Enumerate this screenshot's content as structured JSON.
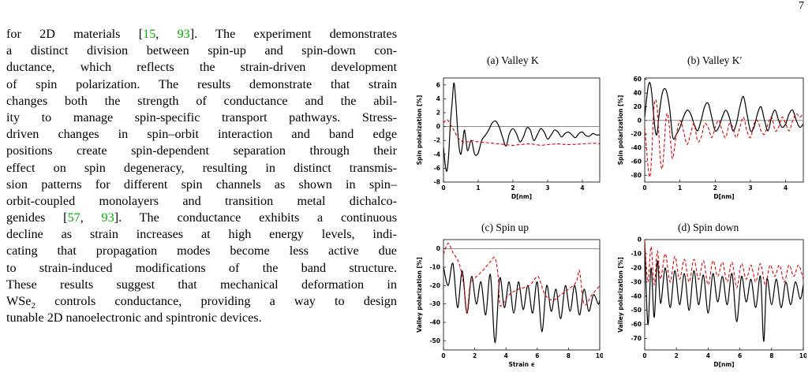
{
  "page_number": "7",
  "body_lines": [
    [
      {
        "t": "for 2D materials ["
      },
      {
        "c": "15"
      },
      {
        "t": ", "
      },
      {
        "c": "93"
      },
      {
        "t": "]. The experiment demonstrates"
      }
    ],
    [
      {
        "t": "a distinct division between spin-up and spin-down con-"
      }
    ],
    [
      {
        "t": "ductance, which reflects the strain-driven development"
      }
    ],
    [
      {
        "t": "of spin polarization. The results demonstrate that strain"
      }
    ],
    [
      {
        "t": "changes both the strength of conductance and the abil-"
      }
    ],
    [
      {
        "t": "ity to manage spin-specific transport pathways. Stress-"
      }
    ],
    [
      {
        "t": "driven changes in spin–orbit interaction and band edge"
      }
    ],
    [
      {
        "t": "positions create spin-dependent separation through their"
      }
    ],
    [
      {
        "t": "effect on spin degeneracy, resulting in distinct transmis-"
      }
    ],
    [
      {
        "t": "sion patterns for different spin channels as shown in spin–"
      }
    ],
    [
      {
        "t": "orbit-coupled monolayers and transition metal dichalco-"
      }
    ],
    [
      {
        "t": "genides ["
      },
      {
        "c": "57"
      },
      {
        "t": ", "
      },
      {
        "c": "93"
      },
      {
        "t": "]. The conductance exhibits a continuous"
      }
    ],
    [
      {
        "t": "decline as strain increases at high energy levels, indi-"
      }
    ],
    [
      {
        "t": "cating that propagation modes become less active due"
      }
    ],
    [
      {
        "t": "to strain-induced modifications of the band structure."
      }
    ],
    [
      {
        "t": "These results suggest that mechanical deformation in"
      }
    ],
    [
      {
        "t": "WSe"
      },
      {
        "s": "2"
      },
      {
        "t": " controls conductance, providing a way to design"
      }
    ],
    [
      {
        "t": "tunable 2D nanoelectronic and spintronic devices."
      }
    ]
  ],
  "colors": {
    "series_solid": "#000000",
    "series_dashed": "#e00000",
    "citation": "#00b000"
  },
  "chart_data": [
    {
      "type": "line",
      "caption": "(a)  Valley K",
      "xlabel": "D[nm]",
      "ylabel": "Spin polarization [%]",
      "xlim": [
        0,
        4.5
      ],
      "ylim": [
        -8,
        7
      ],
      "xticks": [
        0,
        1,
        2,
        3,
        4
      ],
      "yticks": [
        -8,
        -6,
        -4,
        -2,
        0,
        2,
        4,
        6
      ],
      "series": [
        {
          "style": "solid",
          "x": [
            0,
            0.05,
            0.1,
            0.15,
            0.2,
            0.25,
            0.3,
            0.35,
            0.4,
            0.45,
            0.5,
            0.55,
            0.6,
            0.65,
            0.7,
            0.8,
            0.9,
            1.0,
            1.1,
            1.2,
            1.3,
            1.4,
            1.5,
            1.6,
            1.7,
            1.8,
            1.9,
            2.0,
            2.1,
            2.2,
            2.3,
            2.4,
            2.5,
            2.6,
            2.7,
            2.8,
            2.9,
            3.0,
            3.1,
            3.2,
            3.3,
            3.4,
            3.5,
            3.6,
            3.7,
            3.8,
            3.9,
            4.0,
            4.1,
            4.2,
            4.3,
            4.4,
            4.5
          ],
          "y": [
            -3,
            -5.5,
            -6.4,
            -4,
            0.5,
            3.5,
            6.3,
            4,
            0,
            -3,
            -4,
            -2.5,
            -0.5,
            -2,
            -3.5,
            -2,
            -4,
            -3.8,
            -2,
            -1.3,
            -0.5,
            0.5,
            0.8,
            0,
            -1.5,
            -2.8,
            -1,
            -0.3,
            -1,
            -2.2,
            -1.5,
            -0.2,
            -0.5,
            -2,
            -1.2,
            -0.3,
            -0.8,
            -1.8,
            -1.2,
            -0.5,
            -0.8,
            -1.5,
            -1,
            -0.8,
            -1.2,
            -1.6,
            -1,
            -0.8,
            -1.3,
            -1.4,
            -1,
            -1.2,
            -1.2
          ]
        },
        {
          "style": "dashed",
          "x": [
            0,
            0.1,
            0.2,
            0.3,
            0.4,
            0.5,
            0.6,
            0.7,
            0.8,
            0.9,
            1.0,
            1.2,
            1.4,
            1.6,
            1.8,
            2.0,
            2.2,
            2.5,
            2.8,
            3.0,
            3.3,
            3.6,
            4.0,
            4.3,
            4.5
          ],
          "y": [
            0.5,
            1,
            0.3,
            -0.5,
            -1.5,
            -2,
            -2.3,
            -2.2,
            -2,
            -2.1,
            -2.2,
            -2.3,
            -2.4,
            -2.5,
            -2.6,
            -2.7,
            -2.6,
            -2.5,
            -2.7,
            -2.6,
            -2.5,
            -2.6,
            -2.5,
            -2.4,
            -2.5
          ]
        }
      ]
    },
    {
      "type": "line",
      "caption": "(b)  Valley K′",
      "xlabel": "D[nm]",
      "ylabel": "Spin polarization [%]",
      "xlim": [
        0,
        4.5
      ],
      "ylim": [
        -90,
        62
      ],
      "xticks": [
        0,
        1,
        2,
        3,
        4
      ],
      "yticks": [
        -80,
        -60,
        -40,
        -20,
        0,
        20,
        40,
        60
      ],
      "series": [
        {
          "style": "solid",
          "x": [
            0,
            0.05,
            0.1,
            0.15,
            0.2,
            0.25,
            0.3,
            0.35,
            0.4,
            0.5,
            0.6,
            0.7,
            0.8,
            0.9,
            1.0,
            1.1,
            1.2,
            1.3,
            1.4,
            1.5,
            1.6,
            1.7,
            1.8,
            1.9,
            2.0,
            2.1,
            2.2,
            2.3,
            2.4,
            2.5,
            2.6,
            2.7,
            2.8,
            2.9,
            3.0,
            3.1,
            3.2,
            3.3,
            3.4,
            3.5,
            3.6,
            3.7,
            3.8,
            3.9,
            4.0,
            4.1,
            4.2,
            4.3,
            4.4,
            4.5
          ],
          "y": [
            5,
            30,
            50,
            55,
            40,
            10,
            -15,
            -20,
            5,
            40,
            45,
            20,
            -25,
            -20,
            -10,
            5,
            15,
            10,
            -5,
            -15,
            0,
            20,
            25,
            5,
            -15,
            -10,
            5,
            15,
            5,
            -15,
            -5,
            20,
            35,
            10,
            -15,
            -10,
            10,
            20,
            0,
            -15,
            5,
            15,
            0,
            -10,
            -5,
            10,
            15,
            0,
            -10,
            -5
          ]
        },
        {
          "style": "dashed",
          "x": [
            0,
            0.05,
            0.1,
            0.15,
            0.2,
            0.25,
            0.3,
            0.35,
            0.4,
            0.45,
            0.5,
            0.55,
            0.6,
            0.65,
            0.7,
            0.75,
            0.8,
            0.9,
            1.0,
            1.1,
            1.2,
            1.3,
            1.4,
            1.5,
            1.6,
            1.7,
            1.8,
            1.9,
            2.0,
            2.1,
            2.2,
            2.3,
            2.4,
            2.5,
            2.6,
            2.7,
            2.8,
            2.9,
            3.0,
            3.1,
            3.2,
            3.3,
            3.4,
            3.5,
            3.6,
            3.7,
            3.8,
            3.9,
            4.0,
            4.1,
            4.2,
            4.3,
            4.4,
            4.5
          ],
          "y": [
            -10,
            -40,
            -70,
            -82,
            -50,
            10,
            30,
            20,
            -20,
            -60,
            -70,
            -40,
            0,
            10,
            -10,
            -40,
            -55,
            -20,
            0,
            -15,
            -35,
            -20,
            -5,
            -30,
            -25,
            -5,
            -10,
            -25,
            -10,
            0,
            -15,
            -25,
            -5,
            -10,
            -25,
            -10,
            5,
            -15,
            -25,
            -5,
            0,
            -15,
            -20,
            -5,
            5,
            -15,
            -10,
            5,
            -5,
            -15,
            0,
            10,
            5,
            10
          ]
        }
      ]
    },
    {
      "type": "line",
      "caption": "(c)  Spin up",
      "xlabel": "Strain ϵ",
      "ylabel": "Valley polarization [%]",
      "xlim": [
        0,
        10
      ],
      "ylim": [
        -55,
        5
      ],
      "xticks": [
        0,
        2,
        4,
        6,
        8,
        10
      ],
      "yticks": [
        -50,
        -40,
        -30,
        -20,
        -10,
        0
      ],
      "series": [
        {
          "style": "solid",
          "x": [
            0,
            0.3,
            0.6,
            0.9,
            1.2,
            1.5,
            1.8,
            2.1,
            2.4,
            2.7,
            3.0,
            3.3,
            3.6,
            3.9,
            4.2,
            4.5,
            4.8,
            5.1,
            5.4,
            5.7,
            6.0,
            6.3,
            6.6,
            6.9,
            7.2,
            7.5,
            7.8,
            8.1,
            8.4,
            8.7,
            9.0,
            9.3,
            9.6,
            9.9,
            10
          ],
          "y": [
            -10,
            -20,
            -8,
            -32,
            -12,
            -35,
            -15,
            -30,
            -18,
            -36,
            -14,
            -51,
            -16,
            -32,
            -18,
            -35,
            -18,
            -33,
            -20,
            -35,
            -18,
            -45,
            -20,
            -34,
            -22,
            -38,
            -20,
            -34,
            -20,
            -36,
            -22,
            -34,
            -25,
            -30,
            -28
          ]
        },
        {
          "style": "dashed",
          "x": [
            0,
            0.3,
            0.6,
            1.0,
            1.3,
            1.5,
            1.7,
            2.0,
            2.5,
            3.0,
            3.3,
            3.5,
            3.6,
            3.8,
            4.2,
            4.8,
            5.5,
            6.0,
            6.2,
            6.5,
            7.0,
            7.5,
            8.0,
            8.5,
            8.7,
            9.0,
            9.5,
            10
          ],
          "y": [
            -3,
            3,
            -2,
            -8,
            -20,
            -35,
            -20,
            -16,
            -12,
            -7,
            -5,
            -15,
            -30,
            -30,
            -25,
            -22,
            -20,
            -15,
            -18,
            -25,
            -28,
            -25,
            -22,
            -18,
            -12,
            -30,
            -25,
            -20
          ]
        }
      ]
    },
    {
      "type": "line",
      "caption": "(d)  Spin down",
      "xlabel": "D[nm]",
      "ylabel": "Valley polarization [%]",
      "xlim": [
        0,
        10
      ],
      "ylim": [
        -78,
        0
      ],
      "xticks": [
        0,
        2,
        4,
        6,
        8,
        10
      ],
      "yticks": [
        -70,
        -60,
        -50,
        -40,
        -30,
        -20,
        -10,
        0
      ],
      "series": [
        {
          "style": "solid",
          "x": [
            0,
            0.2,
            0.4,
            0.6,
            0.8,
            1.0,
            1.3,
            1.6,
            1.9,
            2.2,
            2.5,
            2.8,
            3.1,
            3.4,
            3.7,
            4.0,
            4.3,
            4.6,
            4.9,
            5.2,
            5.5,
            5.8,
            6.1,
            6.4,
            6.7,
            7.0,
            7.3,
            7.5,
            7.7,
            8.0,
            8.3,
            8.6,
            8.9,
            9.2,
            9.5,
            9.8,
            10
          ],
          "y": [
            -2,
            -60,
            -20,
            -55,
            -15,
            -45,
            -20,
            -48,
            -22,
            -46,
            -24,
            -50,
            -22,
            -46,
            -25,
            -52,
            -24,
            -44,
            -26,
            -46,
            -24,
            -58,
            -26,
            -44,
            -28,
            -48,
            -26,
            -72,
            -28,
            -46,
            -28,
            -48,
            -30,
            -46,
            -30,
            -42,
            -32
          ]
        },
        {
          "style": "dashed",
          "x": [
            0,
            0.2,
            0.4,
            0.6,
            0.8,
            1.0,
            1.3,
            1.6,
            1.9,
            2.2,
            2.5,
            2.8,
            3.1,
            3.4,
            3.7,
            4.0,
            4.3,
            4.6,
            4.9,
            5.2,
            5.5,
            5.8,
            6.1,
            6.4,
            6.7,
            7.0,
            7.3,
            7.6,
            7.9,
            8.2,
            8.5,
            8.8,
            9.1,
            9.4,
            9.7,
            10
          ],
          "y": [
            -1,
            -30,
            -5,
            -32,
            -8,
            -28,
            -10,
            -30,
            -12,
            -28,
            -14,
            -30,
            -14,
            -28,
            -15,
            -32,
            -15,
            -26,
            -16,
            -30,
            -16,
            -34,
            -17,
            -28,
            -18,
            -30,
            -17,
            -32,
            -18,
            -26,
            -18,
            -30,
            -18,
            -26,
            -18,
            -28
          ]
        }
      ]
    }
  ]
}
